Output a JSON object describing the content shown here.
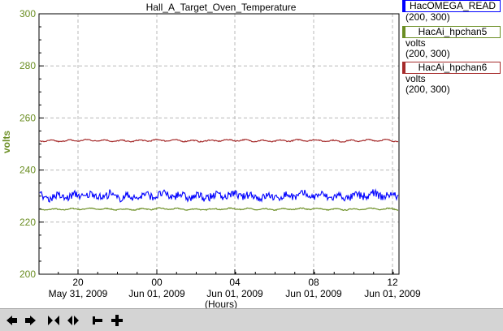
{
  "chart_data": {
    "type": "line",
    "title": "Hall_A_Target_Oven_Temperature",
    "ylabel": "volts",
    "xlabel": "(Hours)",
    "ylim": [
      200,
      300
    ],
    "yticks": [
      200,
      220,
      240,
      260,
      280,
      300
    ],
    "xticks": [
      {
        "hour": "20",
        "date": "May 31, 2009"
      },
      {
        "hour": "00",
        "date": "Jun 01, 2009"
      },
      {
        "hour": "04",
        "date": "Jun 01, 2009"
      },
      {
        "hour": "08",
        "date": "Jun 01, 2009"
      },
      {
        "hour": "12",
        "date": "Jun 01, 2009"
      }
    ],
    "grid": true,
    "legend_position": "right",
    "series": [
      {
        "name": "HacOMEGA_READ",
        "color": "#0000ff",
        "mean": 230,
        "noise": 1.2
      },
      {
        "name": "HacAi_hpchan5",
        "color": "#6b8e23",
        "mean": 225,
        "noise": 0.45
      },
      {
        "name": "HacAi_hpchan6",
        "color": "#a52a2a",
        "mean": 251.3,
        "noise": 0.5
      }
    ]
  },
  "legend": [
    {
      "name": "HacOMEGA_READ",
      "color": "#0000ff",
      "unit": "",
      "range": "(200, 300)"
    },
    {
      "name": "HacAi_hpchan5",
      "color": "#6b8e23",
      "unit": "volts",
      "range": "(200, 300)"
    },
    {
      "name": "HacAi_hpchan6",
      "color": "#a52a2a",
      "unit": "volts",
      "range": "(200, 300)"
    }
  ],
  "toolbar": [
    {
      "name": "pan-left-icon"
    },
    {
      "name": "pan-right-icon"
    },
    {
      "name": "zoom-in-x-icon"
    },
    {
      "name": "zoom-out-x-icon"
    },
    {
      "name": "minus-icon"
    },
    {
      "name": "plus-icon"
    }
  ]
}
